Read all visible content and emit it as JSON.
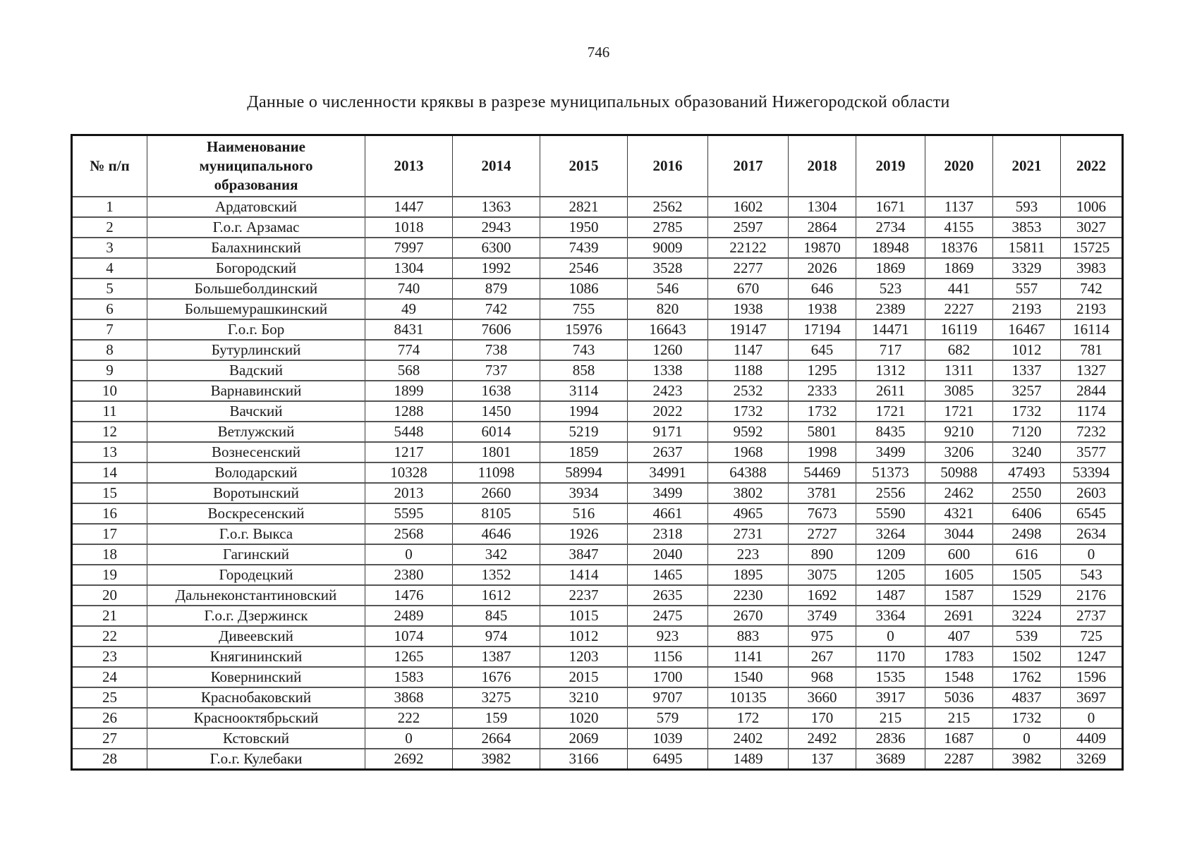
{
  "page": {
    "number": "746"
  },
  "title": "Данные о численности кряквы в разрезе муниципальных образований Нижегородской области",
  "table": {
    "headers": [
      "№ п/п",
      "Наименование муниципального образования",
      "2013",
      "2014",
      "2015",
      "2016",
      "2017",
      "2018",
      "2019",
      "2020",
      "2021",
      "2022"
    ],
    "rows": [
      {
        "num": "1",
        "name": "Ардатовский",
        "values": [
          "1447",
          "1363",
          "2821",
          "2562",
          "1602",
          "1304",
          "1671",
          "1137",
          "593",
          "1006"
        ]
      },
      {
        "num": "2",
        "name": "Г.о.г. Арзамас",
        "values": [
          "1018",
          "2943",
          "1950",
          "2785",
          "2597",
          "2864",
          "2734",
          "4155",
          "3853",
          "3027"
        ]
      },
      {
        "num": "3",
        "name": "Балахнинский",
        "values": [
          "7997",
          "6300",
          "7439",
          "9009",
          "22122",
          "19870",
          "18948",
          "18376",
          "15811",
          "15725"
        ]
      },
      {
        "num": "4",
        "name": "Богородский",
        "values": [
          "1304",
          "1992",
          "2546",
          "3528",
          "2277",
          "2026",
          "1869",
          "1869",
          "3329",
          "3983"
        ]
      },
      {
        "num": "5",
        "name": "Большеболдинский",
        "values": [
          "740",
          "879",
          "1086",
          "546",
          "670",
          "646",
          "523",
          "441",
          "557",
          "742"
        ]
      },
      {
        "num": "6",
        "name": "Большемурашкинский",
        "values": [
          "49",
          "742",
          "755",
          "820",
          "1938",
          "1938",
          "2389",
          "2227",
          "2193",
          "2193"
        ]
      },
      {
        "num": "7",
        "name": "Г.о.г. Бор",
        "values": [
          "8431",
          "7606",
          "15976",
          "16643",
          "19147",
          "17194",
          "14471",
          "16119",
          "16467",
          "16114"
        ]
      },
      {
        "num": "8",
        "name": "Бутурлинский",
        "values": [
          "774",
          "738",
          "743",
          "1260",
          "1147",
          "645",
          "717",
          "682",
          "1012",
          "781"
        ]
      },
      {
        "num": "9",
        "name": "Вадский",
        "values": [
          "568",
          "737",
          "858",
          "1338",
          "1188",
          "1295",
          "1312",
          "1311",
          "1337",
          "1327"
        ]
      },
      {
        "num": "10",
        "name": "Варнавинский",
        "values": [
          "1899",
          "1638",
          "3114",
          "2423",
          "2532",
          "2333",
          "2611",
          "3085",
          "3257",
          "2844"
        ]
      },
      {
        "num": "11",
        "name": "Вачский",
        "values": [
          "1288",
          "1450",
          "1994",
          "2022",
          "1732",
          "1732",
          "1721",
          "1721",
          "1732",
          "1174"
        ]
      },
      {
        "num": "12",
        "name": "Ветлужский",
        "values": [
          "5448",
          "6014",
          "5219",
          "9171",
          "9592",
          "5801",
          "8435",
          "9210",
          "7120",
          "7232"
        ]
      },
      {
        "num": "13",
        "name": "Вознесенский",
        "values": [
          "1217",
          "1801",
          "1859",
          "2637",
          "1968",
          "1998",
          "3499",
          "3206",
          "3240",
          "3577"
        ]
      },
      {
        "num": "14",
        "name": "Володарский",
        "values": [
          "10328",
          "11098",
          "58994",
          "34991",
          "64388",
          "54469",
          "51373",
          "50988",
          "47493",
          "53394"
        ]
      },
      {
        "num": "15",
        "name": "Воротынский",
        "values": [
          "2013",
          "2660",
          "3934",
          "3499",
          "3802",
          "3781",
          "2556",
          "2462",
          "2550",
          "2603"
        ]
      },
      {
        "num": "16",
        "name": "Воскресенский",
        "values": [
          "5595",
          "8105",
          "516",
          "4661",
          "4965",
          "7673",
          "5590",
          "4321",
          "6406",
          "6545"
        ]
      },
      {
        "num": "17",
        "name": "Г.о.г. Выкса",
        "values": [
          "2568",
          "4646",
          "1926",
          "2318",
          "2731",
          "2727",
          "3264",
          "3044",
          "2498",
          "2634"
        ]
      },
      {
        "num": "18",
        "name": "Гагинский",
        "values": [
          "0",
          "342",
          "3847",
          "2040",
          "223",
          "890",
          "1209",
          "600",
          "616",
          "0"
        ]
      },
      {
        "num": "19",
        "name": "Городецкий",
        "values": [
          "2380",
          "1352",
          "1414",
          "1465",
          "1895",
          "3075",
          "1205",
          "1605",
          "1505",
          "543"
        ]
      },
      {
        "num": "20",
        "name": "Дальнеконстантиновский",
        "values": [
          "1476",
          "1612",
          "2237",
          "2635",
          "2230",
          "1692",
          "1487",
          "1587",
          "1529",
          "2176"
        ]
      },
      {
        "num": "21",
        "name": "Г.о.г. Дзержинск",
        "values": [
          "2489",
          "845",
          "1015",
          "2475",
          "2670",
          "3749",
          "3364",
          "2691",
          "3224",
          "2737"
        ]
      },
      {
        "num": "22",
        "name": "Дивеевский",
        "values": [
          "1074",
          "974",
          "1012",
          "923",
          "883",
          "975",
          "0",
          "407",
          "539",
          "725"
        ]
      },
      {
        "num": "23",
        "name": "Княгининский",
        "values": [
          "1265",
          "1387",
          "1203",
          "1156",
          "1141",
          "267",
          "1170",
          "1783",
          "1502",
          "1247"
        ]
      },
      {
        "num": "24",
        "name": "Ковернинский",
        "values": [
          "1583",
          "1676",
          "2015",
          "1700",
          "1540",
          "968",
          "1535",
          "1548",
          "1762",
          "1596"
        ]
      },
      {
        "num": "25",
        "name": "Краснобаковский",
        "values": [
          "3868",
          "3275",
          "3210",
          "9707",
          "10135",
          "3660",
          "3917",
          "5036",
          "4837",
          "3697"
        ]
      },
      {
        "num": "26",
        "name": "Краснооктябрьский",
        "values": [
          "222",
          "159",
          "1020",
          "579",
          "172",
          "170",
          "215",
          "215",
          "1732",
          "0"
        ]
      },
      {
        "num": "27",
        "name": "Кстовский",
        "values": [
          "0",
          "2664",
          "2069",
          "1039",
          "2402",
          "2492",
          "2836",
          "1687",
          "0",
          "4409"
        ]
      },
      {
        "num": "28",
        "name": "Г.о.г. Кулебаки",
        "values": [
          "2692",
          "3982",
          "3166",
          "6495",
          "1489",
          "137",
          "3689",
          "2287",
          "3982",
          "3269"
        ]
      }
    ]
  }
}
